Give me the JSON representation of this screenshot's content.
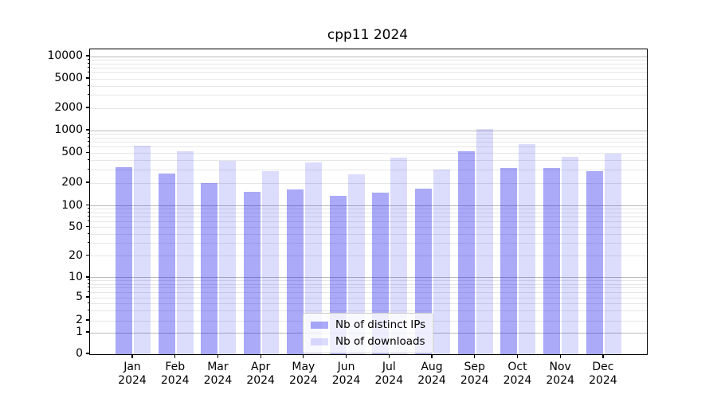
{
  "chart_data": {
    "type": "bar",
    "title": "cpp11 2024",
    "yscale": "symlog",
    "ylim": [
      0,
      12500
    ],
    "grid": true,
    "legend_position": "lower center",
    "categories": [
      "Jan 2024",
      "Feb 2024",
      "Mar 2024",
      "Apr 2024",
      "May 2024",
      "Jun 2024",
      "Jul 2024",
      "Aug 2024",
      "Sep 2024",
      "Oct 2024",
      "Nov 2024",
      "Dec 2024"
    ],
    "series": [
      {
        "name": "Nb of distinct IPs",
        "color": "#1414eb",
        "alpha": 0.36,
        "rendered_color": "#aaaaf8",
        "values": [
          325,
          270,
          200,
          155,
          165,
          135,
          150,
          170,
          530,
          315,
          320,
          290
        ]
      },
      {
        "name": "Nb of downloads",
        "color": "#1414eb",
        "alpha": 0.15,
        "rendered_color": "#dcdcf8",
        "values": [
          630,
          535,
          395,
          290,
          375,
          260,
          435,
          300,
          1055,
          660,
          450,
          490
        ]
      }
    ],
    "y_ticks": [
      0,
      1,
      2,
      5,
      10,
      20,
      50,
      100,
      200,
      500,
      1000,
      2000,
      5000,
      10000
    ],
    "grid_colors": {
      "major": "#bbbbbb",
      "minor": "#e6e6e6"
    }
  }
}
